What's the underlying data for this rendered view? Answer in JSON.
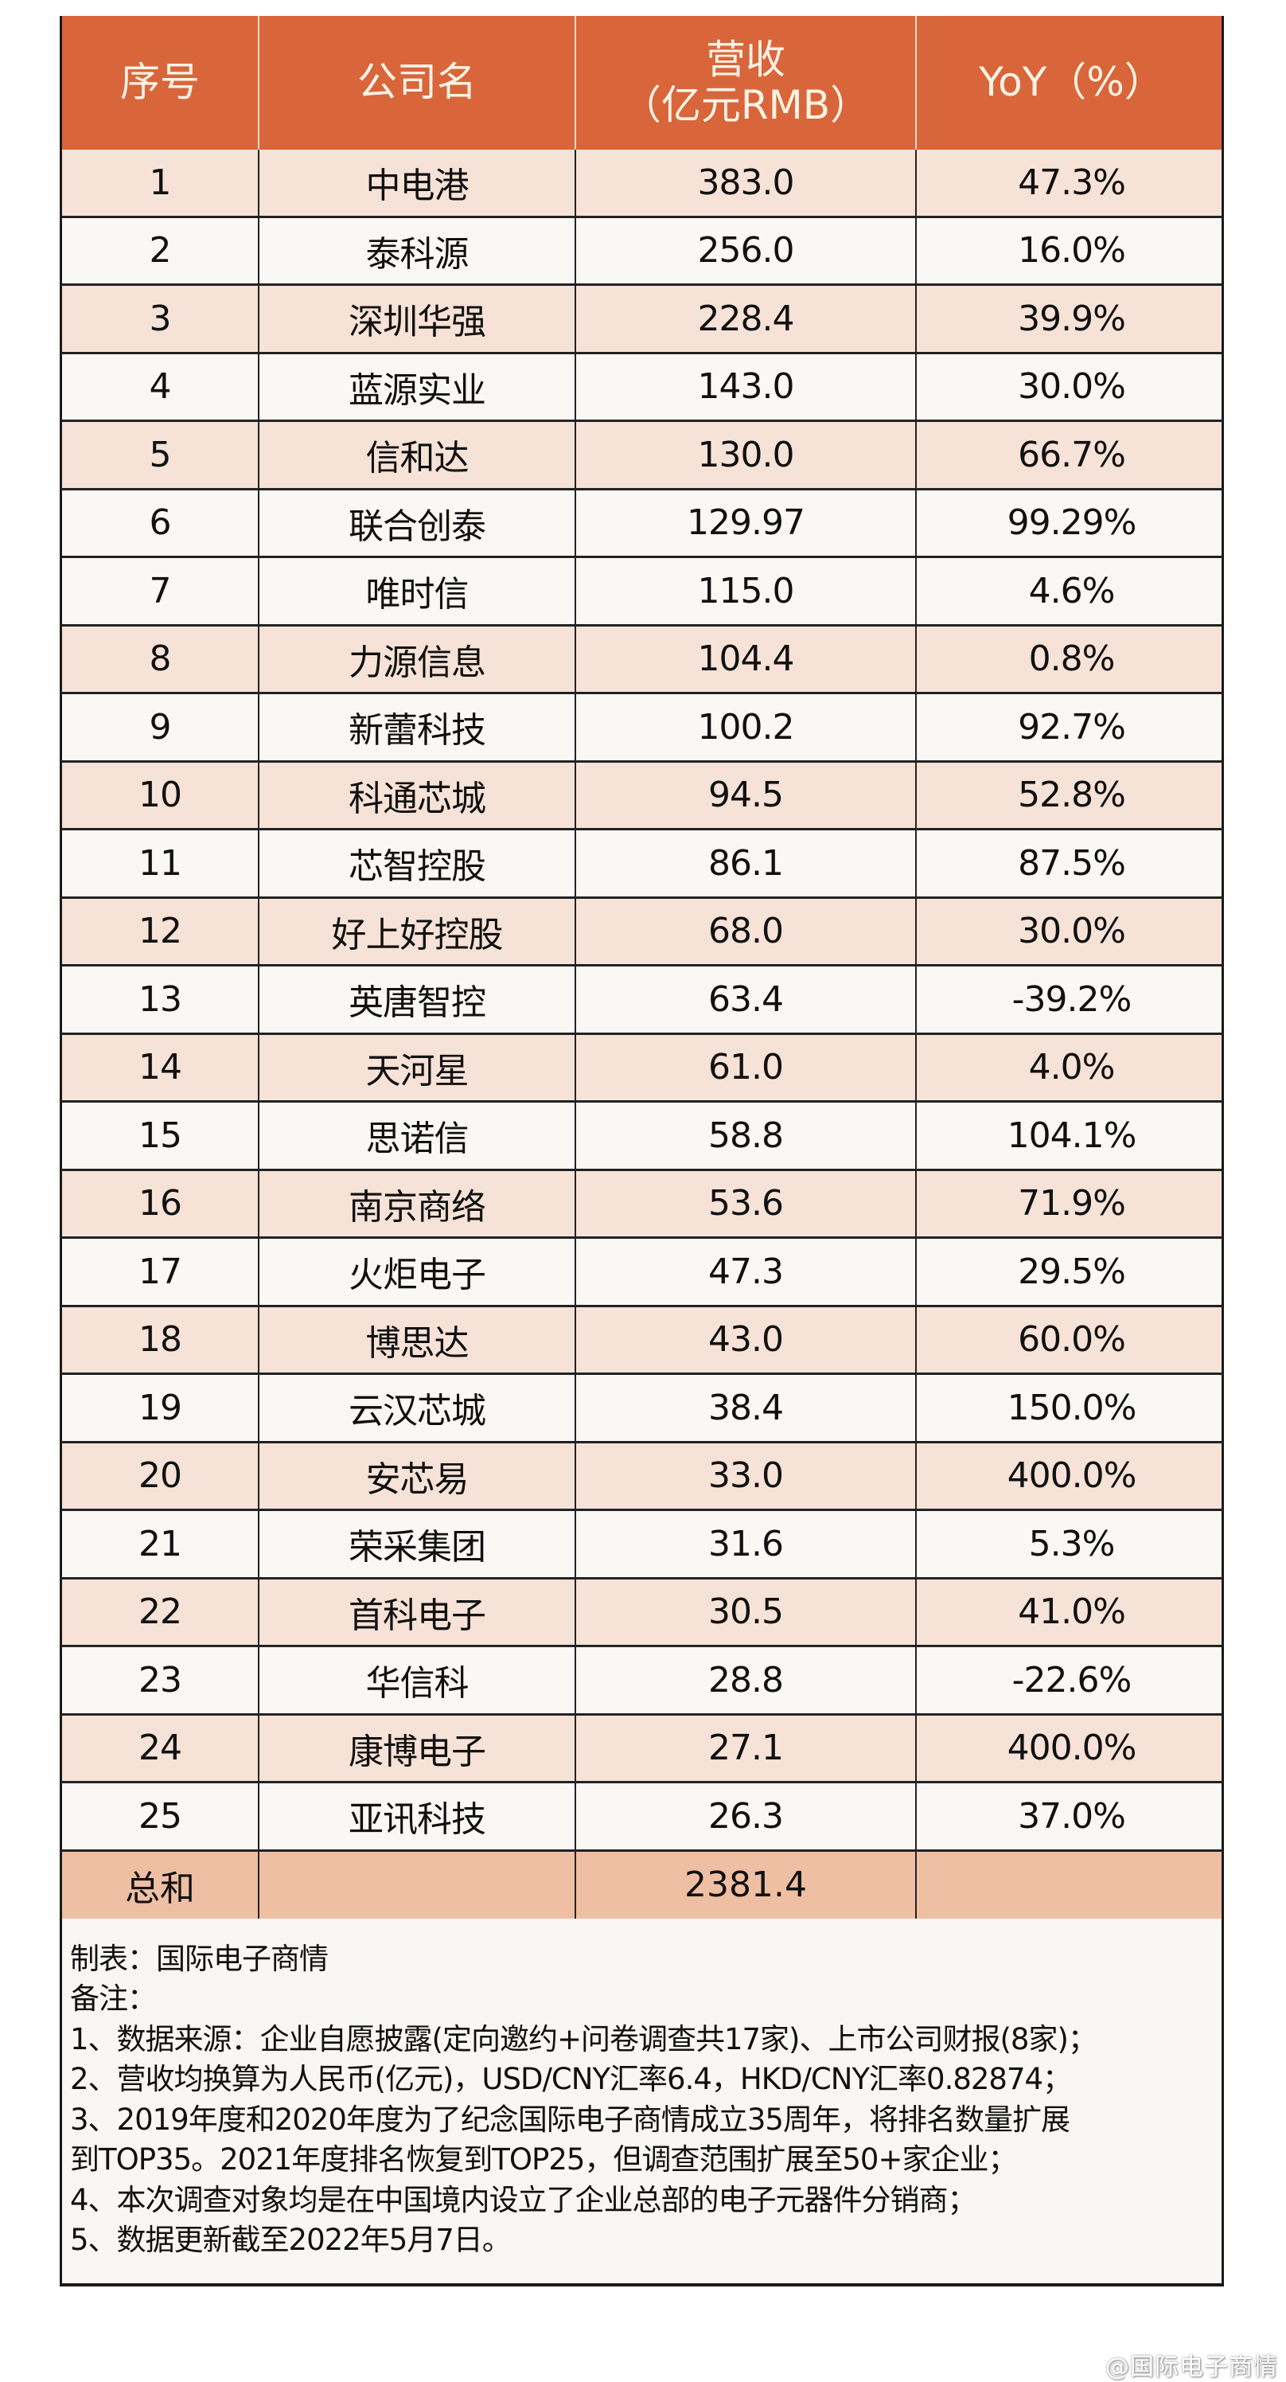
{
  "table": {
    "headers": {
      "rank": "序号",
      "company": "公司名",
      "revenue_line1": "营收",
      "revenue_line2": "（亿元RMB）",
      "yoy": "YoY（%）"
    },
    "rows": [
      {
        "rank": "1",
        "company": "中电港",
        "revenue": "383.0",
        "yoy": "47.3%"
      },
      {
        "rank": "2",
        "company": "泰科源",
        "revenue": "256.0",
        "yoy": "16.0%"
      },
      {
        "rank": "3",
        "company": "深圳华强",
        "revenue": "228.4",
        "yoy": "39.9%"
      },
      {
        "rank": "4",
        "company": "蓝源实业",
        "revenue": "143.0",
        "yoy": "30.0%"
      },
      {
        "rank": "5",
        "company": "信和达",
        "revenue": "130.0",
        "yoy": "66.7%"
      },
      {
        "rank": "6",
        "company": "联合创泰",
        "revenue": "129.97",
        "yoy": "99.29%"
      },
      {
        "rank": "7",
        "company": "唯时信",
        "revenue": "115.0",
        "yoy": "4.6%"
      },
      {
        "rank": "8",
        "company": "力源信息",
        "revenue": "104.4",
        "yoy": "0.8%"
      },
      {
        "rank": "9",
        "company": "新蕾科技",
        "revenue": "100.2",
        "yoy": "92.7%"
      },
      {
        "rank": "10",
        "company": "科通芯城",
        "revenue": "94.5",
        "yoy": "52.8%"
      },
      {
        "rank": "11",
        "company": "芯智控股",
        "revenue": "86.1",
        "yoy": "87.5%"
      },
      {
        "rank": "12",
        "company": "好上好控股",
        "revenue": "68.0",
        "yoy": "30.0%"
      },
      {
        "rank": "13",
        "company": "英唐智控",
        "revenue": "63.4",
        "yoy": "-39.2%"
      },
      {
        "rank": "14",
        "company": "天河星",
        "revenue": "61.0",
        "yoy": "4.0%"
      },
      {
        "rank": "15",
        "company": "思诺信",
        "revenue": "58.8",
        "yoy": "104.1%"
      },
      {
        "rank": "16",
        "company": "南京商络",
        "revenue": "53.6",
        "yoy": "71.9%"
      },
      {
        "rank": "17",
        "company": "火炬电子",
        "revenue": "47.3",
        "yoy": "29.5%"
      },
      {
        "rank": "18",
        "company": "博思达",
        "revenue": "43.0",
        "yoy": "60.0%"
      },
      {
        "rank": "19",
        "company": "云汉芯城",
        "revenue": "38.4",
        "yoy": "150.0%"
      },
      {
        "rank": "20",
        "company": "安芯易",
        "revenue": "33.0",
        "yoy": "400.0%"
      },
      {
        "rank": "21",
        "company": "荣采集团",
        "revenue": "31.6",
        "yoy": "5.3%"
      },
      {
        "rank": "22",
        "company": "首科电子",
        "revenue": "30.5",
        "yoy": "41.0%"
      },
      {
        "rank": "23",
        "company": "华信科",
        "revenue": "28.8",
        "yoy": "-22.6%"
      },
      {
        "rank": "24",
        "company": "康博电子",
        "revenue": "27.1",
        "yoy": "400.0%"
      },
      {
        "rank": "25",
        "company": "亚讯科技",
        "revenue": "26.3",
        "yoy": "37.0%"
      }
    ],
    "total": {
      "label": "总和",
      "company": "",
      "revenue": "2381.4",
      "yoy": ""
    }
  },
  "notes": {
    "made_by": "制表：国际电子商情",
    "remarks_label": "备注：",
    "items": [
      "1、数据来源：企业自愿披露(定向邀约+问卷调查共17家)、上市公司财报(8家)；",
      "2、营收均换算为人民币(亿元)，USD/CNY汇率6.4，HKD/CNY汇率0.82874；",
      "3、2019年度和2020年度为了纪念国际电子商情成立35周年，将排名数量扩展",
      "到TOP35。2021年度排名恢复到TOP25，但调查范围扩展至50+家企业；",
      "4、本次调查对象均是在中国境内设立了企业总部的电子元器件分销商；",
      "5、数据更新截至2022年5月7日。"
    ]
  },
  "watermark": "@国际电子商情",
  "colors": {
    "header_bg": "#D9663B",
    "header_text": "#FFF3E6",
    "row_pink": "#F6E2D7",
    "row_cream": "#FAF8F4",
    "total_bg": "#EFBFA3",
    "notes_bg": "#F9F7F3"
  }
}
